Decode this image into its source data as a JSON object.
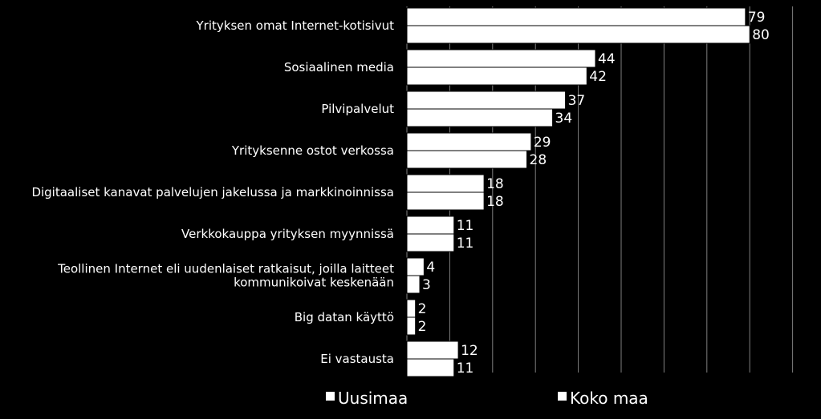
{
  "chart_data": {
    "type": "bar",
    "orientation": "horizontal",
    "categories": [
      "Yrityksen omat Internet-kotisivut",
      "Sosiaalinen media",
      "Pilvipalvelut",
      "Yrityksenne ostot verkossa",
      "Digitaaliset kanavat palvelujen jakelussa ja markkinoinnissa",
      "Verkkokauppa yrityksen myynnissä",
      "Teollinen Internet eli uudenlaiset ratkaisut, joilla laitteet kommunikoivat keskenään",
      "Big datan käyttö",
      "Ei vastausta"
    ],
    "category_lines": [
      [
        "Yrityksen omat Internet-kotisivut"
      ],
      [
        "Sosiaalinen media"
      ],
      [
        "Pilvipalvelut"
      ],
      [
        "Yrityksenne ostot verkossa"
      ],
      [
        "Digitaaliset kanavat palvelujen jakelussa ja markkinoinnissa"
      ],
      [
        "Verkkokauppa yrityksen myynnissä"
      ],
      [
        "Teollinen Internet eli uudenlaiset ratkaisut, joilla laitteet",
        "kommunikoivat keskenään"
      ],
      [
        "Big datan käyttö"
      ],
      [
        "Ei vastausta"
      ]
    ],
    "series": [
      {
        "name": "Uusimaa",
        "values": [
          79,
          44,
          37,
          29,
          18,
          11,
          4,
          2,
          12
        ]
      },
      {
        "name": "Koko maa",
        "values": [
          80,
          42,
          34,
          28,
          18,
          11,
          3,
          2,
          11
        ]
      }
    ],
    "xlim": [
      0,
      90
    ],
    "grid": true,
    "legend_position": "bottom",
    "colors": {
      "background": "#000000",
      "bar": "#ffffff",
      "bar_stroke": "#000000",
      "text": "#ffffff",
      "grid": "#7f7f7f"
    }
  }
}
